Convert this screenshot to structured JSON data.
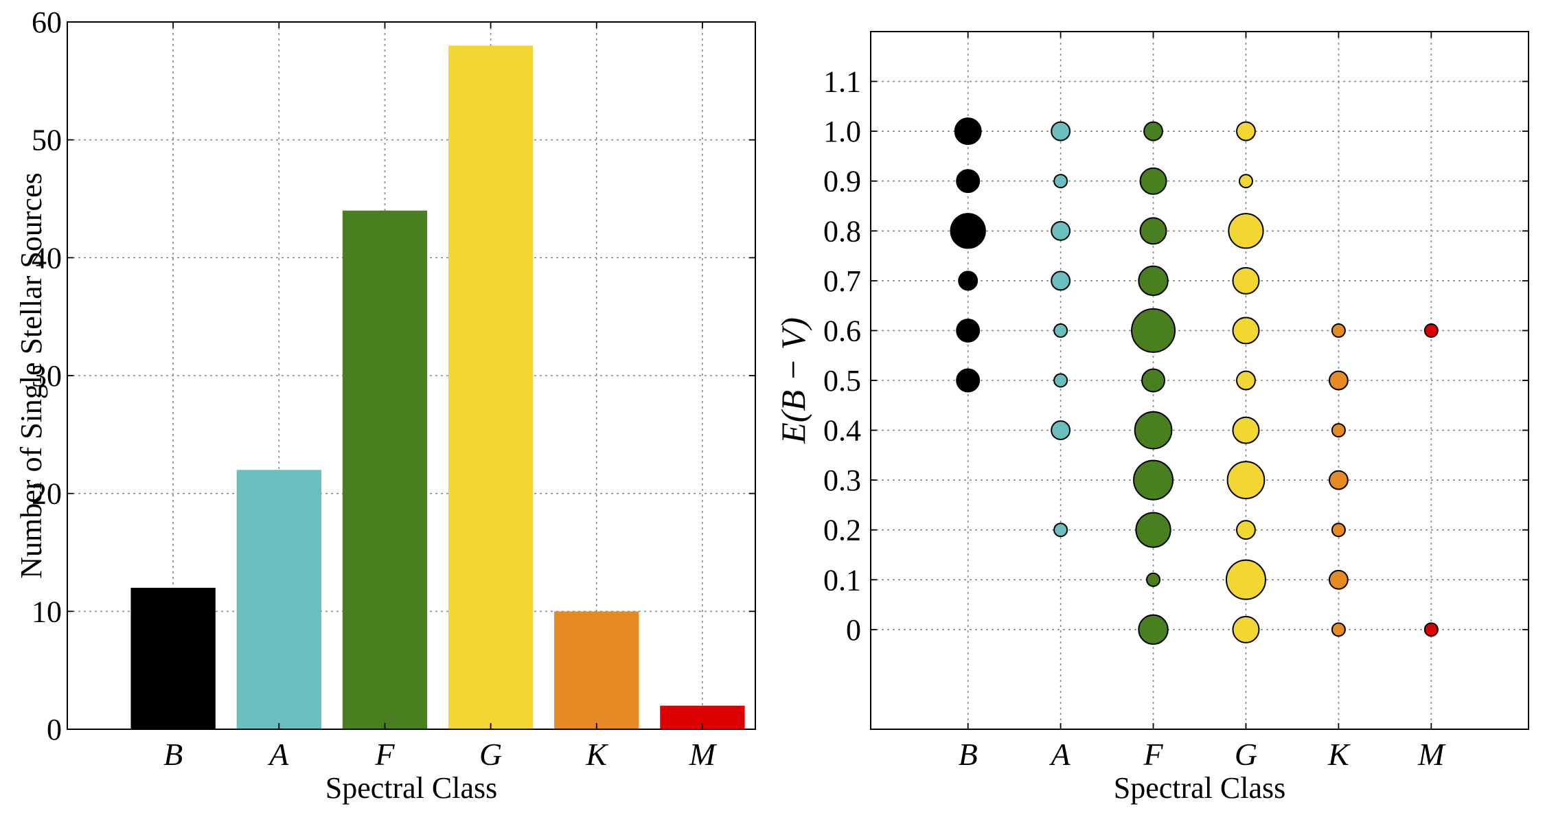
{
  "chart_data": [
    {
      "type": "bar",
      "categories": [
        "B",
        "A",
        "F",
        "G",
        "K",
        "M"
      ],
      "values": [
        12,
        22,
        44,
        58,
        10,
        2
      ],
      "colors": [
        "#000000",
        "#6BBEBE",
        "#4A7F20",
        "#F2D632",
        "#E68A24",
        "#DD0000"
      ],
      "xlabel": "Spectral Class",
      "ylabel": "Number of Single Stellar Sources",
      "ylim": [
        0,
        60
      ],
      "yticks": [
        "0",
        "10",
        "20",
        "30",
        "40",
        "50",
        "60"
      ],
      "grid": true
    },
    {
      "type": "scatter",
      "categories": [
        "B",
        "A",
        "F",
        "G",
        "K",
        "M"
      ],
      "colors": [
        "#000000",
        "#6BBEBE",
        "#4A7F20",
        "#F2D632",
        "#E68A24",
        "#DD0000"
      ],
      "xlabel": "Spectral Class",
      "ylabel": "E(B − V)",
      "ylim": [
        -0.2,
        1.2
      ],
      "yticks": [
        "0",
        "0.1",
        "0.2",
        "0.3",
        "0.4",
        "0.5",
        "0.6",
        "0.7",
        "0.8",
        "0.9",
        "1.0",
        "1.1"
      ],
      "grid": true,
      "size_meaning": "relative number of sources (1 = smallest marker)",
      "points": [
        {
          "class": "B",
          "y": 1.0,
          "size": 4
        },
        {
          "class": "B",
          "y": 0.9,
          "size": 3
        },
        {
          "class": "B",
          "y": 0.8,
          "size": 7
        },
        {
          "class": "B",
          "y": 0.7,
          "size": 2
        },
        {
          "class": "B",
          "y": 0.6,
          "size": 3
        },
        {
          "class": "B",
          "y": 0.5,
          "size": 3
        },
        {
          "class": "A",
          "y": 1.0,
          "size": 2
        },
        {
          "class": "A",
          "y": 0.9,
          "size": 1
        },
        {
          "class": "A",
          "y": 0.8,
          "size": 2
        },
        {
          "class": "A",
          "y": 0.7,
          "size": 2
        },
        {
          "class": "A",
          "y": 0.6,
          "size": 1
        },
        {
          "class": "A",
          "y": 0.5,
          "size": 1
        },
        {
          "class": "A",
          "y": 0.4,
          "size": 2
        },
        {
          "class": "A",
          "y": 0.2,
          "size": 1
        },
        {
          "class": "F",
          "y": 1.0,
          "size": 2
        },
        {
          "class": "F",
          "y": 0.9,
          "size": 4
        },
        {
          "class": "F",
          "y": 0.8,
          "size": 4
        },
        {
          "class": "F",
          "y": 0.7,
          "size": 5
        },
        {
          "class": "F",
          "y": 0.6,
          "size": 11
        },
        {
          "class": "F",
          "y": 0.5,
          "size": 3
        },
        {
          "class": "F",
          "y": 0.4,
          "size": 8
        },
        {
          "class": "F",
          "y": 0.3,
          "size": 9
        },
        {
          "class": "F",
          "y": 0.2,
          "size": 7
        },
        {
          "class": "F",
          "y": 0.1,
          "size": 1
        },
        {
          "class": "F",
          "y": 0.0,
          "size": 5
        },
        {
          "class": "G",
          "y": 1.0,
          "size": 2
        },
        {
          "class": "G",
          "y": 0.9,
          "size": 1
        },
        {
          "class": "G",
          "y": 0.8,
          "size": 7
        },
        {
          "class": "G",
          "y": 0.7,
          "size": 4
        },
        {
          "class": "G",
          "y": 0.6,
          "size": 4
        },
        {
          "class": "G",
          "y": 0.5,
          "size": 2
        },
        {
          "class": "G",
          "y": 0.4,
          "size": 4
        },
        {
          "class": "G",
          "y": 0.3,
          "size": 8
        },
        {
          "class": "G",
          "y": 0.2,
          "size": 2
        },
        {
          "class": "G",
          "y": 0.1,
          "size": 9
        },
        {
          "class": "G",
          "y": 0.0,
          "size": 4
        },
        {
          "class": "K",
          "y": 0.6,
          "size": 1
        },
        {
          "class": "K",
          "y": 0.5,
          "size": 2
        },
        {
          "class": "K",
          "y": 0.4,
          "size": 1
        },
        {
          "class": "K",
          "y": 0.3,
          "size": 2
        },
        {
          "class": "K",
          "y": 0.2,
          "size": 1
        },
        {
          "class": "K",
          "y": 0.1,
          "size": 2
        },
        {
          "class": "K",
          "y": 0.0,
          "size": 1
        },
        {
          "class": "M",
          "y": 0.6,
          "size": 1
        },
        {
          "class": "M",
          "y": 0.0,
          "size": 1
        }
      ]
    }
  ]
}
